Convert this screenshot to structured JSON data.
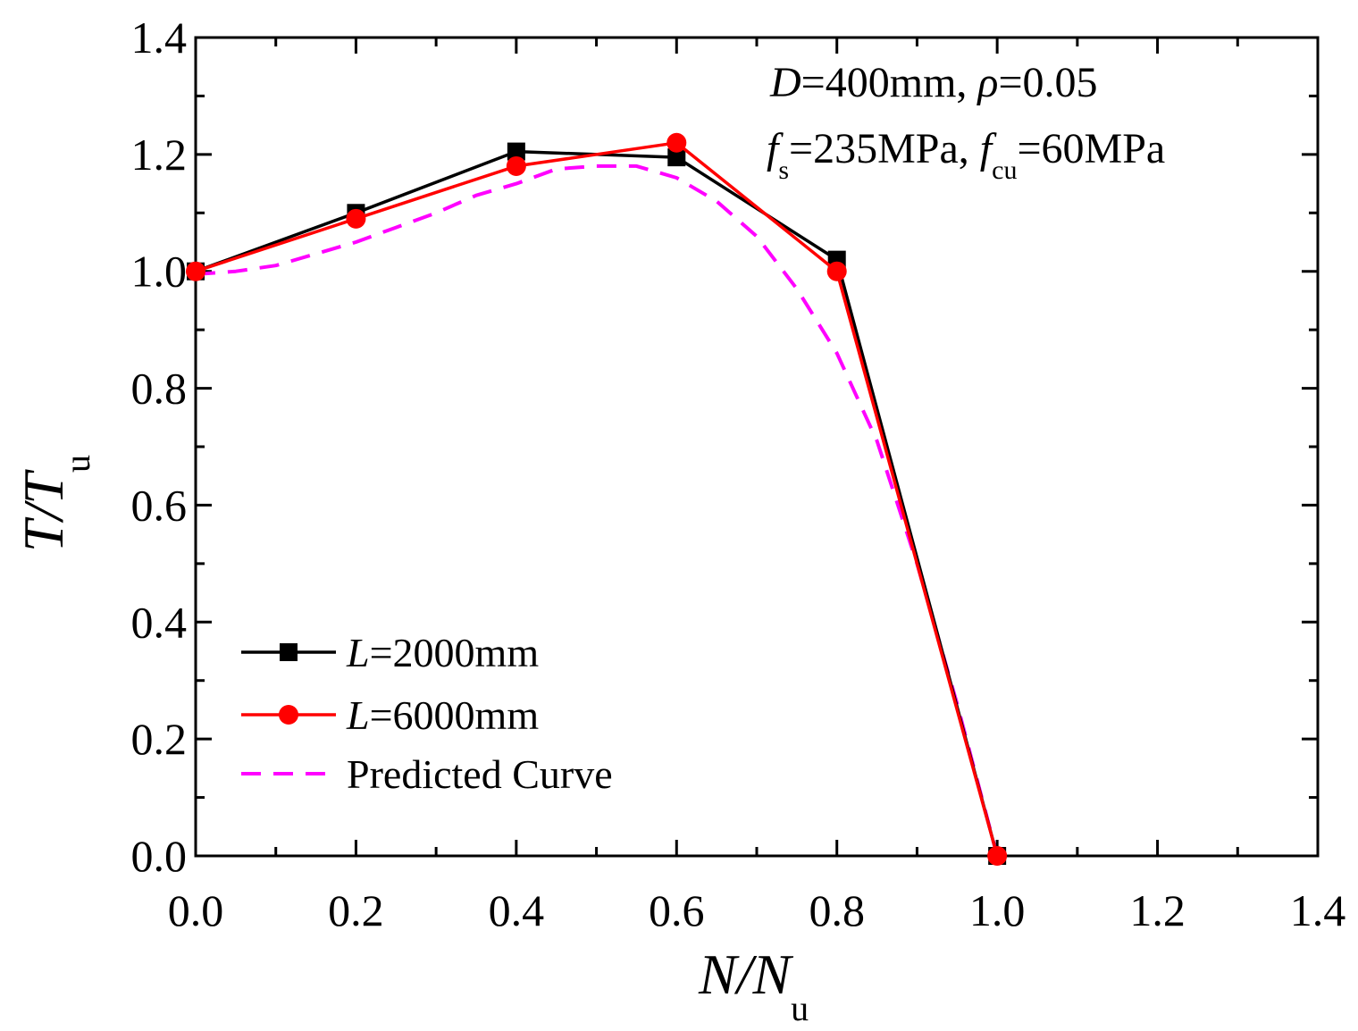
{
  "chart_data": {
    "type": "line",
    "xlabel": {
      "main": "N/N",
      "sub": "u"
    },
    "ylabel": {
      "main": "T/T",
      "sub": "u"
    },
    "xlim": [
      0.0,
      1.4
    ],
    "ylim": [
      0.0,
      1.4
    ],
    "xticks": [
      "0.0",
      "0.2",
      "0.4",
      "0.6",
      "0.8",
      "1.0",
      "1.2",
      "1.4"
    ],
    "yticks": [
      "0.0",
      "0.2",
      "0.4",
      "0.6",
      "0.8",
      "1.0",
      "1.2",
      "1.4"
    ],
    "grid": false,
    "legend_position": "bottom-left",
    "annotation": {
      "line1": {
        "d": "D",
        "eq1": "=400mm, ",
        "rho": "ρ",
        "eq2": "=0.05"
      },
      "line2": {
        "f": "f",
        "s_sub": "s",
        "eq1": "=235MPa, ",
        "f2": "f",
        "cu_sub": "cu",
        "eq2": "=60MPa"
      }
    },
    "series": [
      {
        "name": "L=2000mm",
        "legend_italic": "L",
        "legend_rest": "=2000mm",
        "color": "#000000",
        "marker": "square",
        "dashed": false,
        "x": [
          0.0,
          0.2,
          0.4,
          0.6,
          0.8,
          1.0
        ],
        "y": [
          1.0,
          1.1,
          1.205,
          1.195,
          1.02,
          0.0
        ]
      },
      {
        "name": "L=6000mm",
        "legend_italic": "L",
        "legend_rest": "=6000mm",
        "color": "#ff0000",
        "marker": "circle",
        "dashed": false,
        "x": [
          0.0,
          0.2,
          0.4,
          0.6,
          0.8,
          1.0
        ],
        "y": [
          1.0,
          1.09,
          1.18,
          1.22,
          1.0,
          0.0
        ]
      },
      {
        "name": "Predicted Curve",
        "legend_italic": "",
        "legend_rest": "Predicted Curve",
        "color": "#ff00ff",
        "marker": "none",
        "dashed": true,
        "x": [
          0.0,
          0.05,
          0.1,
          0.15,
          0.2,
          0.25,
          0.3,
          0.35,
          0.4,
          0.45,
          0.5,
          0.55,
          0.6,
          0.65,
          0.7,
          0.75,
          0.8,
          0.85,
          0.9,
          0.95,
          1.0
        ],
        "y": [
          0.995,
          1.0,
          1.01,
          1.03,
          1.05,
          1.075,
          1.1,
          1.13,
          1.15,
          1.175,
          1.18,
          1.18,
          1.16,
          1.12,
          1.06,
          0.97,
          0.86,
          0.71,
          0.5,
          0.26,
          0.0
        ]
      }
    ]
  }
}
